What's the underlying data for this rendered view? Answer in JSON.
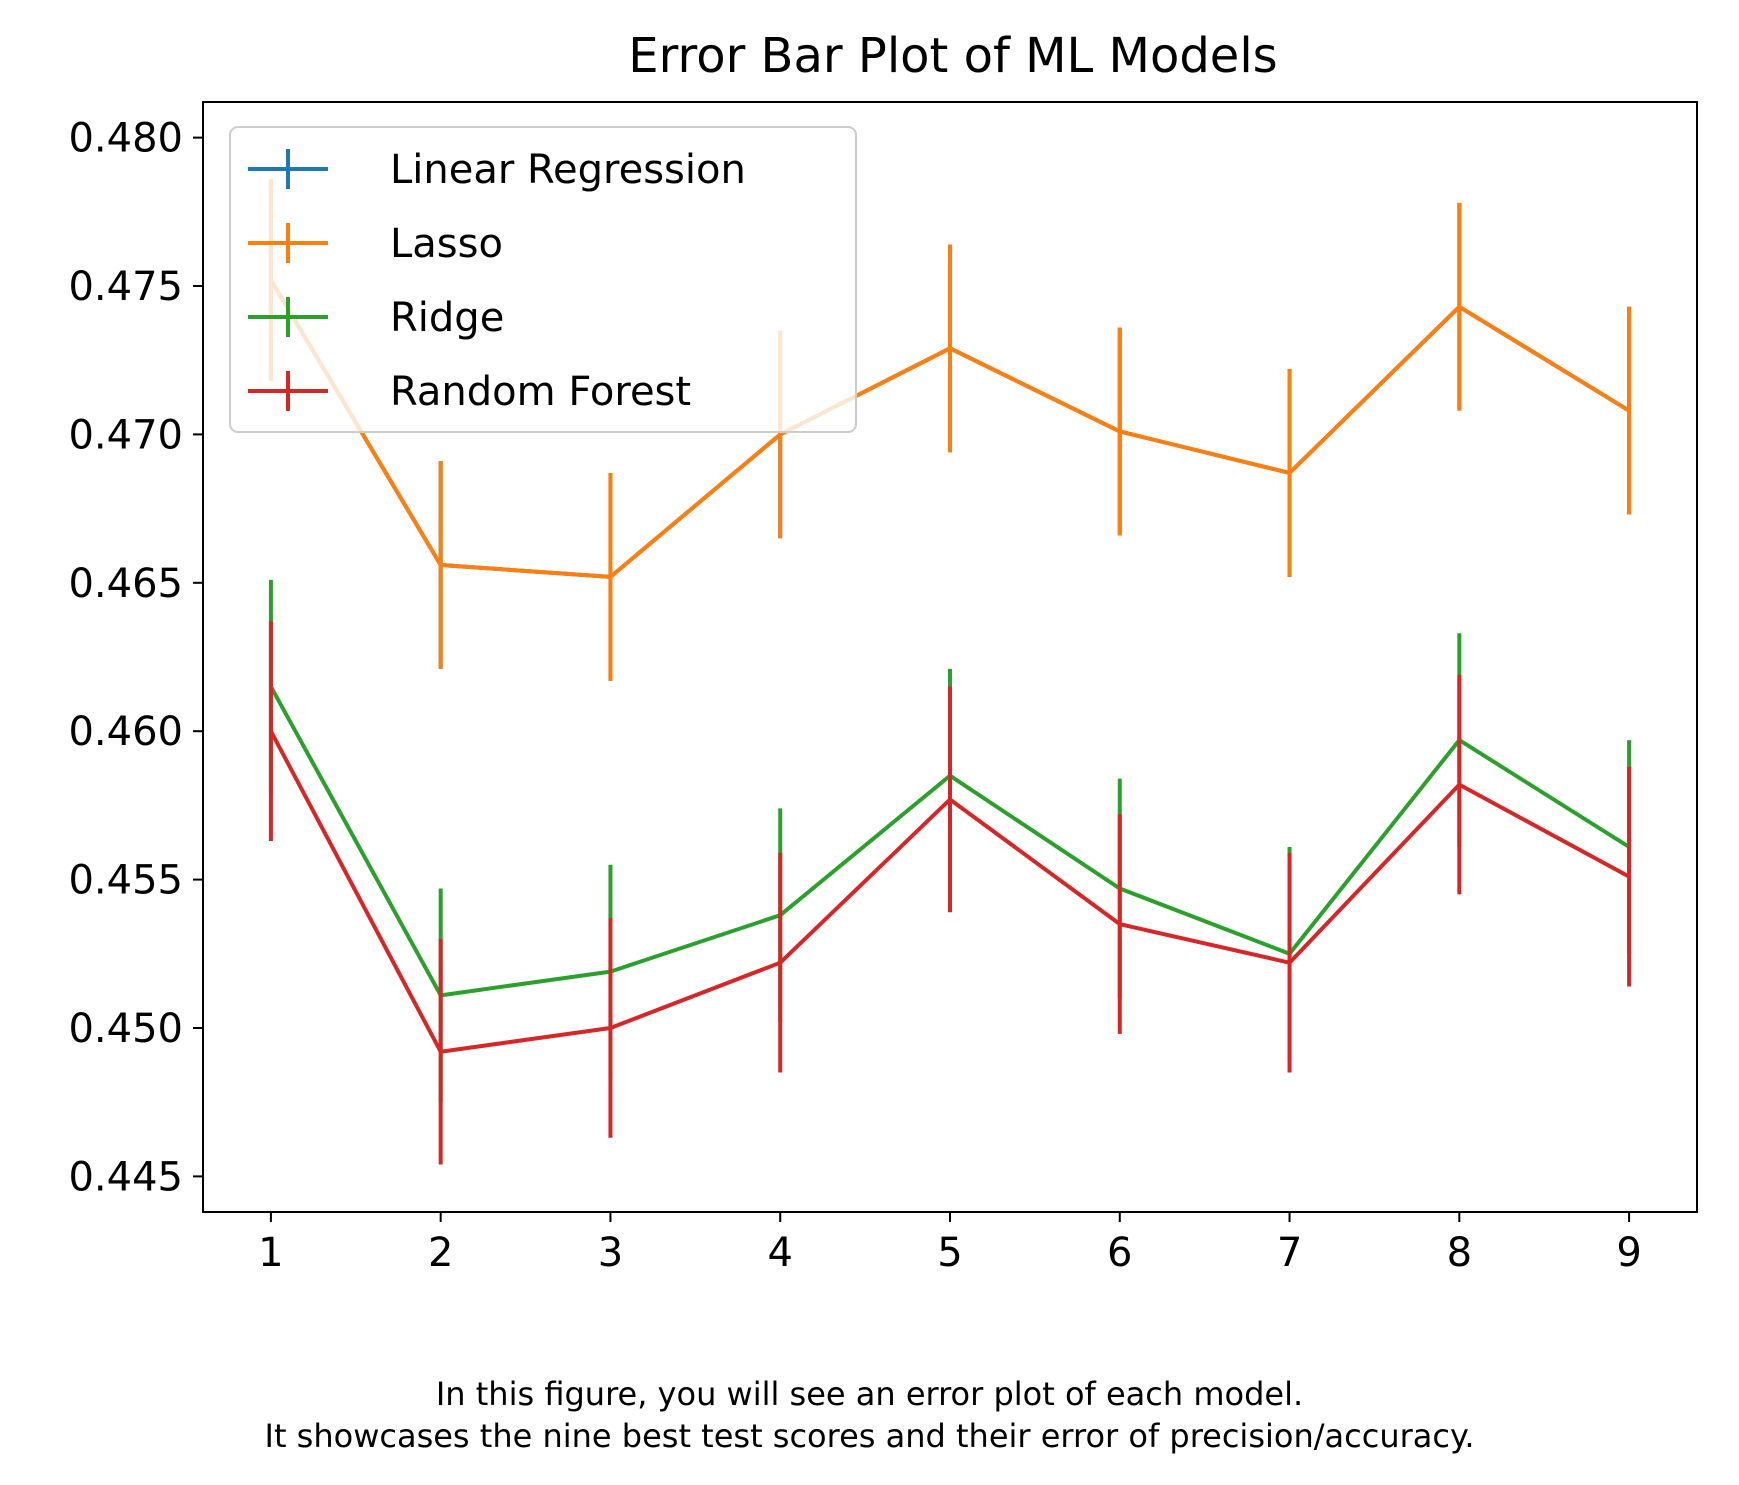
{
  "chart_data": {
    "type": "line",
    "title": "Error Bar Plot of ML Models",
    "xlabel": "",
    "ylabel": "",
    "x": [
      1,
      2,
      3,
      4,
      5,
      6,
      7,
      8,
      9
    ],
    "xlim": [
      0.6,
      9.4
    ],
    "ylim": [
      0.4438,
      0.4812
    ],
    "xticks": [
      1,
      2,
      3,
      4,
      5,
      6,
      7,
      8,
      9
    ],
    "yticks": [
      0.445,
      0.45,
      0.455,
      0.46,
      0.465,
      0.47,
      0.475,
      0.48
    ],
    "ytick_labels": [
      "0.445",
      "0.450",
      "0.455",
      "0.460",
      "0.465",
      "0.470",
      "0.475",
      "0.480"
    ],
    "grid": false,
    "legend_position": "upper-left",
    "series": [
      {
        "name": "Linear Regression",
        "color": "#1f77b4",
        "values": [
          0.4752,
          0.4656,
          0.4652,
          0.47,
          0.4729,
          0.4701,
          0.4687,
          0.4743,
          0.4708
        ],
        "errors": [
          0.0034,
          0.0035,
          0.0035,
          0.0035,
          0.0035,
          0.0035,
          0.0035,
          0.0035,
          0.0035
        ]
      },
      {
        "name": "Lasso",
        "color": "#ff7f0e",
        "values": [
          0.4752,
          0.4656,
          0.4652,
          0.47,
          0.4729,
          0.4701,
          0.4687,
          0.4743,
          0.4708
        ],
        "errors": [
          0.0034,
          0.0035,
          0.0035,
          0.0035,
          0.0035,
          0.0035,
          0.0035,
          0.0035,
          0.0035
        ]
      },
      {
        "name": "Ridge",
        "color": "#2ca02c",
        "values": [
          0.4615,
          0.4511,
          0.4519,
          0.4538,
          0.4585,
          0.4547,
          0.4525,
          0.4597,
          0.4561
        ],
        "errors": [
          0.0036,
          0.0036,
          0.0036,
          0.0036,
          0.0036,
          0.0037,
          0.0036,
          0.0036,
          0.0036
        ]
      },
      {
        "name": "Random Forest",
        "color": "#d62728",
        "values": [
          0.46,
          0.4492,
          0.45,
          0.4522,
          0.4577,
          0.4535,
          0.4522,
          0.4582,
          0.4551
        ],
        "errors": [
          0.0037,
          0.0038,
          0.0037,
          0.0037,
          0.0038,
          0.0037,
          0.0037,
          0.0037,
          0.0037
        ]
      }
    ]
  },
  "caption": {
    "line1": "In this figure, you will see an error plot of each model.",
    "line2": "It showcases the nine best test scores and their error of precision/accuracy."
  }
}
